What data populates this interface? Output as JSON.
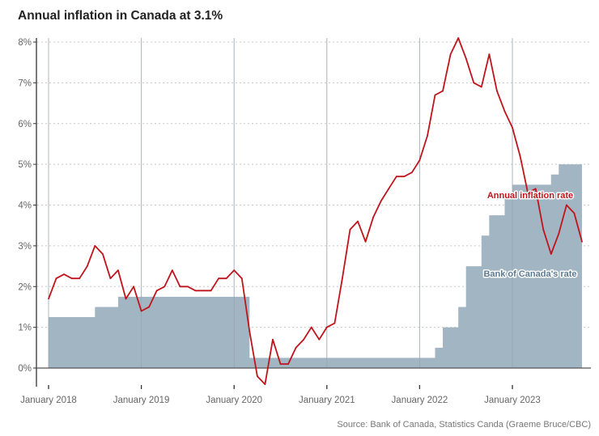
{
  "chart_data": {
    "type": "line",
    "title": "Annual inflation in Canada at 3.1%",
    "source": "Source: Bank of Canada, Statistics Canda (Graeme Bruce/CBC)",
    "x_start": "2018-01",
    "x_frequency": "monthly",
    "x_tick_labels": [
      "January 2018",
      "January 2019",
      "January 2020",
      "January 2021",
      "January 2022",
      "January 2023"
    ],
    "y_tick_labels": [
      "0%",
      "1%",
      "2%",
      "3%",
      "4%",
      "5%",
      "6%",
      "7%",
      "8%"
    ],
    "ylim": [
      0,
      8
    ],
    "grid": {
      "horizontal": "dotted",
      "vertical": "at each January"
    },
    "series": [
      {
        "name": "Annual inflation rate",
        "style": "line",
        "color": "#c0141c",
        "values": [
          1.7,
          2.2,
          2.3,
          2.2,
          2.2,
          2.5,
          3.0,
          2.8,
          2.2,
          2.4,
          1.7,
          2.0,
          1.4,
          1.5,
          1.9,
          2.0,
          2.4,
          2.0,
          2.0,
          1.9,
          1.9,
          1.9,
          2.2,
          2.2,
          2.4,
          2.2,
          0.9,
          -0.2,
          -0.4,
          0.7,
          0.1,
          0.1,
          0.5,
          0.7,
          1.0,
          0.7,
          1.0,
          1.1,
          2.2,
          3.4,
          3.6,
          3.1,
          3.7,
          4.1,
          4.4,
          4.7,
          4.7,
          4.8,
          5.1,
          5.7,
          6.7,
          6.8,
          7.7,
          8.1,
          7.6,
          7.0,
          6.9,
          7.7,
          6.8,
          6.3,
          5.9,
          5.2,
          4.3,
          4.4,
          3.4,
          2.8,
          3.3,
          4.0,
          3.8,
          3.1
        ]
      },
      {
        "name": "Bank of Canada's rate",
        "style": "step-area",
        "color": "#a2b5c3",
        "label_color": "#5b7a91",
        "values": [
          1.25,
          1.25,
          1.25,
          1.25,
          1.25,
          1.25,
          1.5,
          1.5,
          1.5,
          1.75,
          1.75,
          1.75,
          1.75,
          1.75,
          1.75,
          1.75,
          1.75,
          1.75,
          1.75,
          1.75,
          1.75,
          1.75,
          1.75,
          1.75,
          1.75,
          1.75,
          0.25,
          0.25,
          0.25,
          0.25,
          0.25,
          0.25,
          0.25,
          0.25,
          0.25,
          0.25,
          0.25,
          0.25,
          0.25,
          0.25,
          0.25,
          0.25,
          0.25,
          0.25,
          0.25,
          0.25,
          0.25,
          0.25,
          0.25,
          0.25,
          0.5,
          1.0,
          1.0,
          1.5,
          2.5,
          2.5,
          3.25,
          3.75,
          3.75,
          4.25,
          4.5,
          4.5,
          4.5,
          4.5,
          4.5,
          4.75,
          5.0,
          5.0,
          5.0,
          5.0
        ]
      }
    ]
  }
}
